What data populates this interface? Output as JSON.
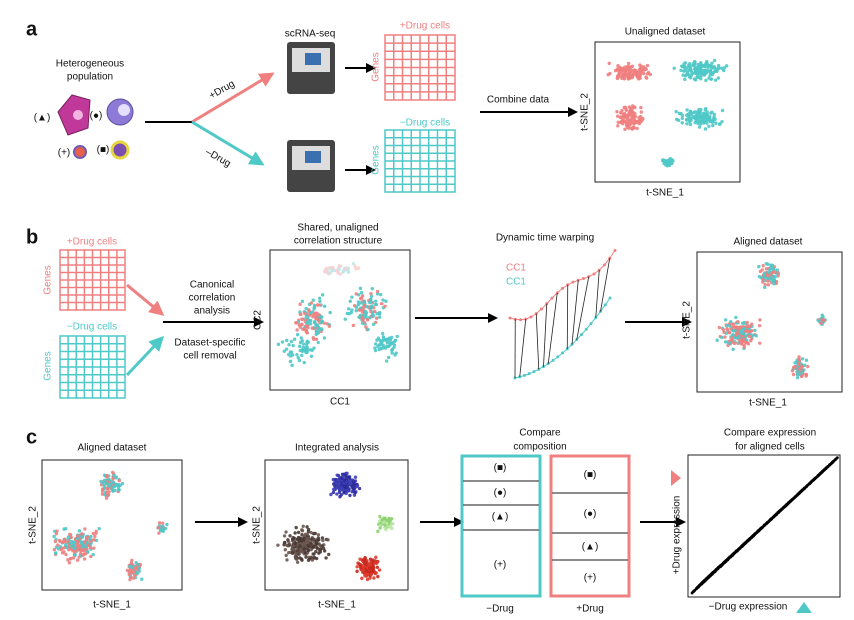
{
  "panel_a": {
    "label": "a",
    "population": [
      "Heterogeneous",
      "population"
    ],
    "markers": [
      "(▲)",
      "(●)",
      "(+)",
      "(■)"
    ],
    "plus_drug": "+Drug",
    "minus_drug": "–Drug",
    "sequencer": "scRNA-seq",
    "plus_matrix": {
      "title": "+Drug cells",
      "axis": "Genes"
    },
    "minus_matrix": {
      "title": "−Drug cells",
      "axis": "Genes"
    },
    "combine": "Combine data",
    "plot": {
      "title": "Unaligned dataset",
      "y_label": "t-SNE_2",
      "x_label": "t-SNE_1"
    }
  },
  "panel_b": {
    "label": "b",
    "plus_matrix": {
      "title": "+Drug cells",
      "axis": "Genes"
    },
    "minus_matrix": {
      "title": "−Drug cells",
      "axis": "Genes"
    },
    "cca": [
      "Canonical",
      "correlation",
      "analysis"
    ],
    "removal": [
      "Dataset-specific",
      "cell removal"
    ],
    "correlation_plot": {
      "title": [
        "Shared, unaligned",
        "correlation structure"
      ],
      "y_label": "CC2",
      "x_label": "CC1"
    },
    "dtw": {
      "title": "Dynamic time warping",
      "legend": [
        "CC1",
        "CC1"
      ]
    },
    "aligned_plot": {
      "title": "Aligned dataset",
      "y_label": "t-SNE_2",
      "x_label": "t-SNE_1"
    }
  },
  "panel_c": {
    "label": "c",
    "aligned_plot": {
      "title": "Aligned dataset",
      "y_label": "t-SNE_2",
      "x_label": "t-SNE_1"
    },
    "integrated_plot": {
      "title": "Integrated analysis",
      "y_label": "t-SNE_2",
      "x_label": "t-SNE_1"
    },
    "composition": {
      "title": [
        "Compare",
        "composition"
      ],
      "minus_markers": [
        "(■)",
        "(●)",
        "(▲)",
        "(+)"
      ],
      "plus_markers": [
        "(■)",
        "(●)",
        "(▲)",
        "(+)"
      ],
      "minus_label": "−Drug",
      "plus_label": "+Drug"
    },
    "expression": {
      "title": [
        "Compare expression",
        "for aligned cells"
      ],
      "y_label": "+Drug expression",
      "x_label": "−Drug expression"
    }
  }
}
